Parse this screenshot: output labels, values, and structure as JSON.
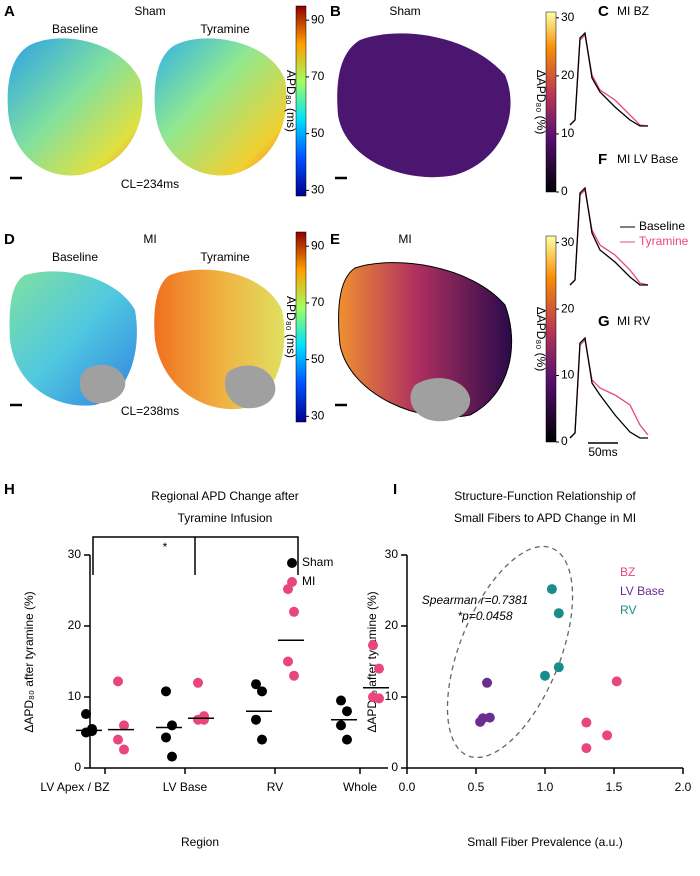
{
  "panel_labels": [
    "A",
    "B",
    "C",
    "D",
    "E",
    "F",
    "G",
    "H",
    "I"
  ],
  "heatmaps": [
    {
      "title": "Sham",
      "left_label": "Baseline",
      "right_label": "Tyramine",
      "cycle_length": "CL=234ms",
      "colorbar_label": "APD₈₀ (ms)",
      "colorbar_lim": [
        28,
        95
      ],
      "colorbar_ticks": [
        30,
        50,
        70,
        90
      ]
    },
    {
      "title": "Sham",
      "colorbar_label": "ΔAPD₈₀ (%)",
      "colorbar_lim": [
        0,
        31
      ],
      "colorbar_ticks": [
        0,
        10,
        20,
        30
      ]
    },
    {
      "title": "MI",
      "left_label": "Baseline",
      "right_label": "Tyramine",
      "cycle_length": "CL=238ms",
      "colorbar_label": "APD₈₀ (ms)",
      "colorbar_lim": [
        28,
        95
      ],
      "colorbar_ticks": [
        30,
        50,
        70,
        90
      ]
    },
    {
      "title": "MI",
      "colorbar_label": "ΔAPD₈₀ (%)",
      "colorbar_lim": [
        0,
        31
      ],
      "colorbar_ticks": [
        0,
        10,
        20,
        30
      ]
    }
  ],
  "traces": {
    "titles": [
      "MI BZ",
      "MI LV Base",
      "MI RV"
    ],
    "legend": [
      "Baseline",
      "Tyramine"
    ],
    "scale_bar": "50ms"
  },
  "chart_data": [
    {
      "type": "strip",
      "title_lines": [
        "Regional APD Change after",
        "Tyramine Infusion"
      ],
      "x_label": "Region",
      "y_label": "ΔAPD₈₀ after tyramine (%)",
      "categories": [
        "LV Apex / BZ",
        "LV Base",
        "RV",
        "Whole"
      ],
      "series": [
        {
          "name": "Sham",
          "color": "#000000",
          "values": [
            [
              7.6,
              5.5,
              5.0,
              5.2
            ],
            [
              10.8,
              6.0,
              4.3,
              1.6
            ],
            [
              11.8,
              10.8,
              6.8,
              4.0
            ],
            [
              9.5,
              8.0,
              6.0,
              4.0
            ]
          ],
          "means": [
            5.3,
            5.7,
            8.0,
            6.8
          ]
        },
        {
          "name": "MI",
          "color": "#e8467c",
          "values": [
            [
              12.2,
              6.0,
              4.0,
              2.6
            ],
            [
              12.0,
              7.3,
              6.8,
              6.8
            ],
            [
              25.2,
              22.0,
              15.0,
              13.0
            ],
            [
              17.3,
              14.0,
              10.0,
              9.8
            ]
          ],
          "means": [
            5.4,
            7.0,
            18.0,
            11.3
          ]
        }
      ],
      "ylim": [
        0,
        30
      ],
      "yticks": [
        0,
        10,
        20,
        30
      ],
      "annotation": "*"
    },
    {
      "type": "scatter",
      "title_lines": [
        "Structure-Function Relationship of",
        "Small Fibers to APD Change in MI"
      ],
      "x_label": "Small Fiber Prevalence (a.u.)",
      "y_label": "ΔAPD₈₀ after tyramine (%)",
      "series": [
        {
          "name": "BZ",
          "color": "#e8467c",
          "x": [
            1.3,
            1.3,
            1.45,
            1.52
          ],
          "values": [
            6.4,
            2.8,
            4.6,
            12.2
          ]
        },
        {
          "name": "LV Base",
          "color": "#6a2c91",
          "x": [
            0.53,
            0.55,
            0.6,
            0.58
          ],
          "values": [
            6.5,
            7.0,
            7.1,
            12.0
          ]
        },
        {
          "name": "RV",
          "color": "#1a8c8c",
          "x": [
            1.05,
            1.1,
            1.1,
            1.0
          ],
          "values": [
            25.2,
            21.8,
            14.2,
            13.0
          ]
        }
      ],
      "xlim": [
        0,
        2
      ],
      "xticks": [
        {
          "value": 0,
          "label": "0.0"
        },
        {
          "value": 0.5,
          "label": "0.5"
        },
        {
          "value": 1,
          "label": "1.0"
        },
        {
          "value": 1.5,
          "label": "1.5"
        },
        {
          "value": 2,
          "label": "2.0"
        }
      ],
      "ylim": [
        0,
        30
      ],
      "yticks": [
        0,
        10,
        20,
        30
      ],
      "annotations": [
        "Spearman r=0.7381",
        "*p=0.0458"
      ]
    }
  ]
}
